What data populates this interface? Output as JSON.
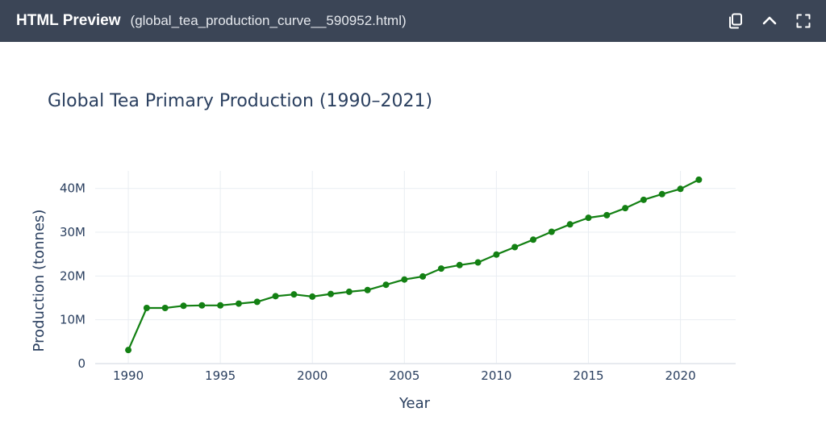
{
  "window": {
    "app_title": "HTML Preview",
    "file_name": "(global_tea_production_curve__590952.html)",
    "actions": [
      {
        "name": "copy-icon"
      },
      {
        "name": "chevron-up-icon"
      },
      {
        "name": "fullscreen-icon"
      }
    ]
  },
  "colors": {
    "titlebar": "#3b4556",
    "line": "#138013",
    "grid": "#e9edf2",
    "text": "#2a3f5f"
  },
  "chart_data": {
    "type": "line",
    "title": "Global Tea Primary Production (1990–2021)",
    "xlabel": "Year",
    "ylabel": "Production (tonnes)",
    "xlim": [
      1988.2,
      2023
    ],
    "ylim": [
      0,
      44000000
    ],
    "x_ticks": [
      1990,
      1995,
      2000,
      2005,
      2010,
      2015,
      2020
    ],
    "x_tick_labels": [
      "1990",
      "1995",
      "2000",
      "2005",
      "2010",
      "2015",
      "2020"
    ],
    "y_ticks": [
      0,
      10000000,
      20000000,
      30000000,
      40000000
    ],
    "y_tick_labels": [
      "0",
      "10M",
      "20M",
      "30M",
      "40M"
    ],
    "grid": true,
    "markers": true,
    "series": [
      {
        "name": "Production",
        "x": [
          1990,
          1991,
          1992,
          1993,
          1994,
          1995,
          1996,
          1997,
          1998,
          1999,
          2000,
          2001,
          2002,
          2003,
          2004,
          2005,
          2006,
          2007,
          2008,
          2009,
          2010,
          2011,
          2012,
          2013,
          2014,
          2015,
          2016,
          2017,
          2018,
          2019,
          2020,
          2021
        ],
        "values": [
          3100000,
          12700000,
          12700000,
          13200000,
          13300000,
          13300000,
          13700000,
          14100000,
          15400000,
          15800000,
          15300000,
          15900000,
          16400000,
          16800000,
          18000000,
          19200000,
          19900000,
          21700000,
          22500000,
          23100000,
          24900000,
          26600000,
          28300000,
          30100000,
          31800000,
          33300000,
          33900000,
          35500000,
          37400000,
          38700000,
          39900000,
          42000000
        ]
      }
    ]
  }
}
